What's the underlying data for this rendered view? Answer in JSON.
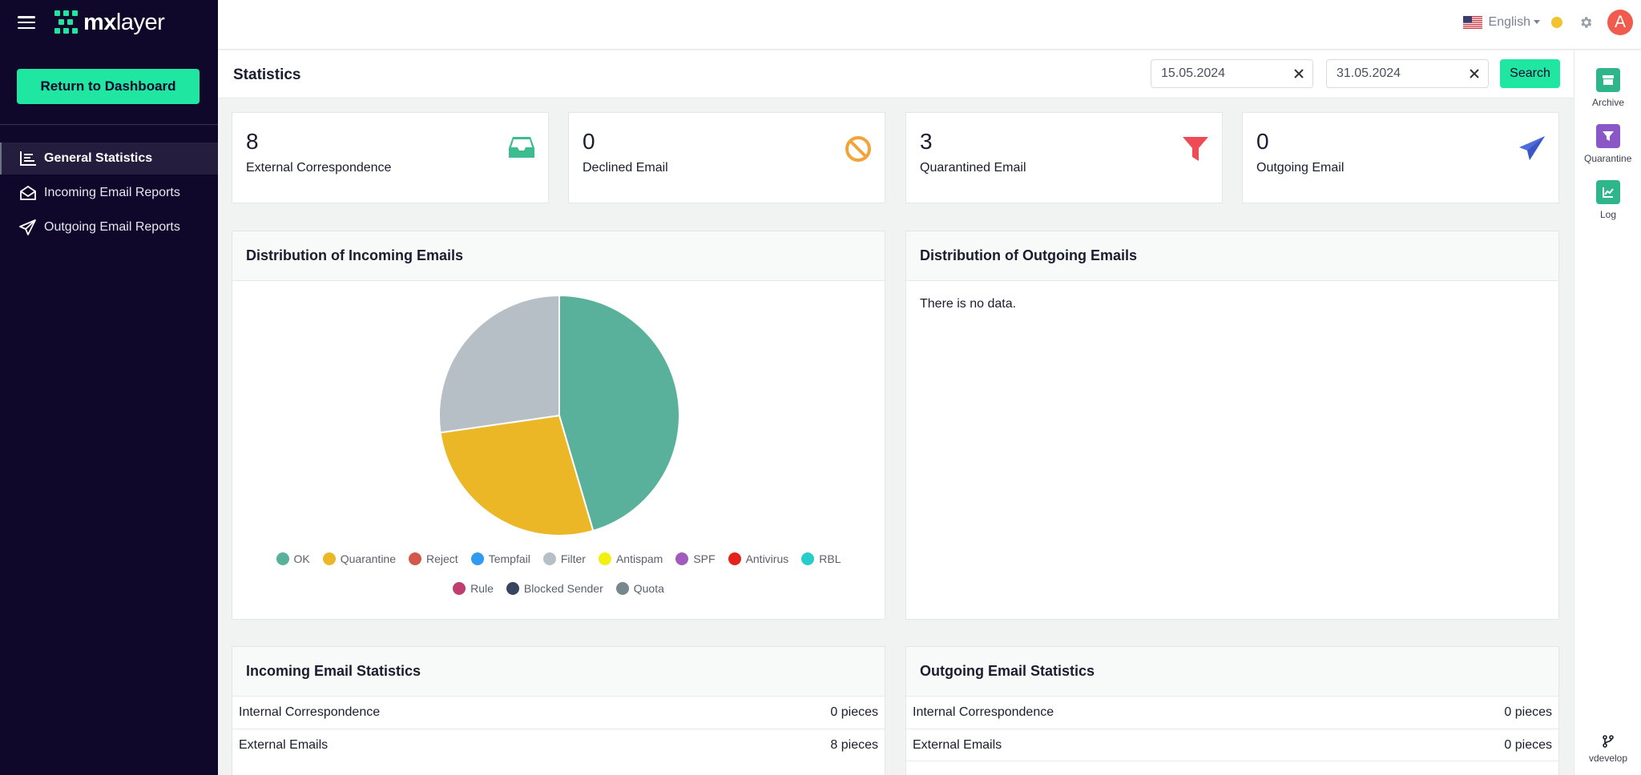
{
  "app": {
    "logo_text_bold": "mx",
    "logo_text": "layer"
  },
  "sidebar": {
    "return_label": "Return to Dashboard",
    "items": [
      {
        "label": "General Statistics",
        "icon": "chart-bars-icon",
        "active": true
      },
      {
        "label": "Incoming Email Reports",
        "icon": "envelope-open-icon",
        "active": false
      },
      {
        "label": "Outgoing Email Reports",
        "icon": "paper-plane-icon",
        "active": false
      }
    ]
  },
  "topbar": {
    "language": "English",
    "avatar_initial": "A"
  },
  "page": {
    "title": "Statistics",
    "date_from": "15.05.2024",
    "date_to": "31.05.2024",
    "search_label": "Search"
  },
  "rail": {
    "items": [
      {
        "label": "Archive",
        "icon": "archive-icon",
        "color": "#2fb58a"
      },
      {
        "label": "Quarantine",
        "icon": "filter-icon",
        "color": "#8b56c6"
      },
      {
        "label": "Log",
        "icon": "chart-icon",
        "color": "#2fb58a"
      }
    ],
    "bottom_label": "vdevelop"
  },
  "stats": [
    {
      "value": "8",
      "label": "External Correspondence",
      "icon": "inbox-icon",
      "color": "#3dbd8f"
    },
    {
      "value": "0",
      "label": "Declined Email",
      "icon": "ban-icon",
      "color": "#f2a43a"
    },
    {
      "value": "3",
      "label": "Quarantined Email",
      "icon": "filter-icon",
      "color": "#ef4b56"
    },
    {
      "value": "0",
      "label": "Outgoing Email",
      "icon": "paper-plane-icon",
      "color": "#4f6bdc"
    }
  ],
  "incoming_dist": {
    "title": "Distribution of Incoming Emails"
  },
  "outgoing_dist": {
    "title": "Distribution of Outgoing Emails",
    "empty_text": "There is no data."
  },
  "chart_data": {
    "type": "pie",
    "labels": [
      "OK",
      "Quarantine",
      "Reject",
      "Tempfail",
      "Filter",
      "Antispam",
      "SPF",
      "Antivirus",
      "RBL",
      "Rule",
      "Blocked Sender",
      "Quota"
    ],
    "colors": [
      "#5ab19b",
      "#ecb727",
      "#d2594a",
      "#2f9af0",
      "#b6bfc5",
      "#f1f010",
      "#a15abd",
      "#e3231e",
      "#27cdc8",
      "#bf3e6f",
      "#37465e",
      "#76888f"
    ],
    "values": [
      5,
      3,
      0,
      0,
      3,
      0,
      0,
      0,
      0,
      0,
      0,
      0
    ]
  },
  "incoming_stats": {
    "title": "Incoming Email Statistics",
    "rows": [
      {
        "label": "Internal Correspondence",
        "value": "0 pieces"
      },
      {
        "label": "External Emails",
        "value": "8 pieces"
      }
    ]
  },
  "outgoing_stats": {
    "title": "Outgoing Email Statistics",
    "rows": [
      {
        "label": "Internal Correspondence",
        "value": "0 pieces"
      },
      {
        "label": "External Emails",
        "value": "0 pieces"
      }
    ]
  }
}
